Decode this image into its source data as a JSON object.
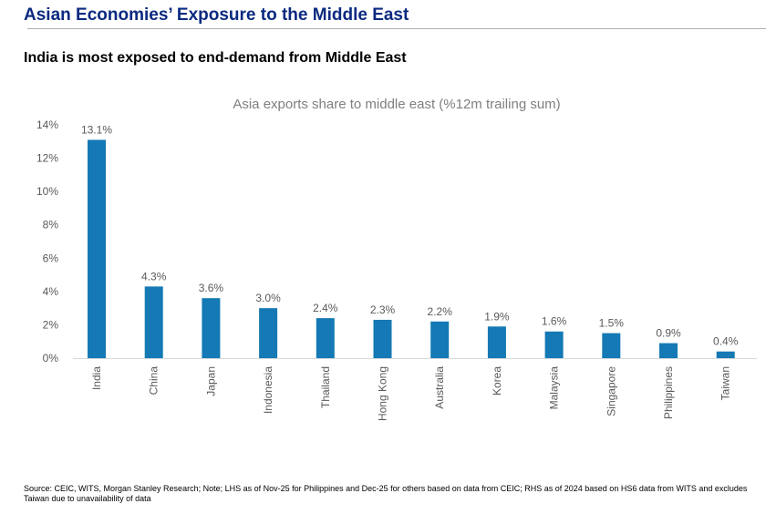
{
  "header": {
    "title": "Asian Economies’ Exposure to the Middle East",
    "subtitle": "India is most exposed to end-demand from Middle East"
  },
  "footer": {
    "source": "Source: CEIC, WITS, Morgan Stanley Research; Note; LHS as of Nov-25 for Philippines and Dec-25 for others based on data from CEIC; RHS as of 2024 based on HS6 data from WITS and excludes Taiwan due to unavailability of data"
  },
  "chart_data": {
    "type": "bar",
    "title": "Asia exports share to middle east (%12m trailing sum)",
    "xlabel": "",
    "ylabel": "",
    "ylim": [
      0,
      14
    ],
    "yticks": [
      0,
      2,
      4,
      6,
      8,
      10,
      12,
      14
    ],
    "ytick_labels": [
      "0%",
      "2%",
      "4%",
      "6%",
      "8%",
      "10%",
      "12%",
      "14%"
    ],
    "grid": false,
    "categories": [
      "India",
      "China",
      "Japan",
      "Indonesia",
      "Thailand",
      "Hong Kong",
      "Australia",
      "Korea",
      "Malaysia",
      "Singapore",
      "Philippines",
      "Taiwan"
    ],
    "values": [
      13.1,
      4.3,
      3.6,
      3.0,
      2.4,
      2.3,
      2.2,
      1.9,
      1.6,
      1.5,
      0.9,
      0.4
    ],
    "data_labels": [
      "13.1%",
      "4.3%",
      "3.6%",
      "3.0%",
      "2.4%",
      "2.3%",
      "2.2%",
      "1.9%",
      "1.6%",
      "1.5%",
      "0.9%",
      "0.4%"
    ],
    "bar_color": "#1479b4"
  }
}
